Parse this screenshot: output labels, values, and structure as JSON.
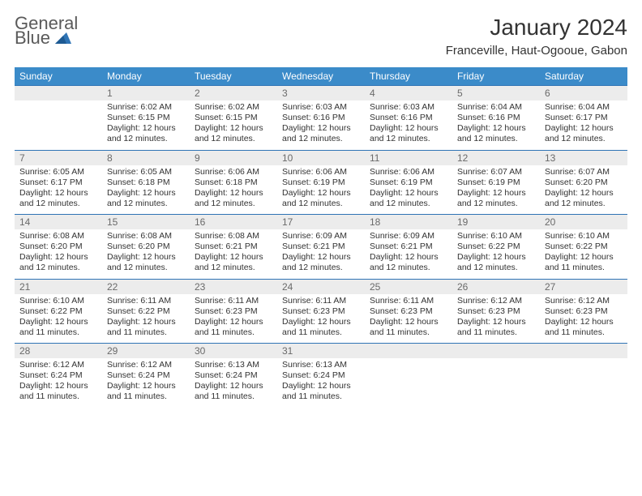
{
  "brand": {
    "word1": "General",
    "word2": "Blue"
  },
  "title": "January 2024",
  "location": "Franceville, Haut-Ogooue, Gabon",
  "colors": {
    "header_bg": "#3b8bc9",
    "header_text": "#ffffff",
    "rule": "#2f74b5",
    "daynum_bg": "#ececec",
    "daynum_text": "#6a6a6a",
    "body_text": "#333333",
    "logo_gray": "#5a5a5a",
    "logo_blue": "#2f74b5"
  },
  "dow": [
    "Sunday",
    "Monday",
    "Tuesday",
    "Wednesday",
    "Thursday",
    "Friday",
    "Saturday"
  ],
  "weeks": [
    [
      {
        "n": "",
        "empty": true
      },
      {
        "n": "1",
        "sr": "Sunrise: 6:02 AM",
        "ss": "Sunset: 6:15 PM",
        "d1": "Daylight: 12 hours",
        "d2": "and 12 minutes."
      },
      {
        "n": "2",
        "sr": "Sunrise: 6:02 AM",
        "ss": "Sunset: 6:15 PM",
        "d1": "Daylight: 12 hours",
        "d2": "and 12 minutes."
      },
      {
        "n": "3",
        "sr": "Sunrise: 6:03 AM",
        "ss": "Sunset: 6:16 PM",
        "d1": "Daylight: 12 hours",
        "d2": "and 12 minutes."
      },
      {
        "n": "4",
        "sr": "Sunrise: 6:03 AM",
        "ss": "Sunset: 6:16 PM",
        "d1": "Daylight: 12 hours",
        "d2": "and 12 minutes."
      },
      {
        "n": "5",
        "sr": "Sunrise: 6:04 AM",
        "ss": "Sunset: 6:16 PM",
        "d1": "Daylight: 12 hours",
        "d2": "and 12 minutes."
      },
      {
        "n": "6",
        "sr": "Sunrise: 6:04 AM",
        "ss": "Sunset: 6:17 PM",
        "d1": "Daylight: 12 hours",
        "d2": "and 12 minutes."
      }
    ],
    [
      {
        "n": "7",
        "sr": "Sunrise: 6:05 AM",
        "ss": "Sunset: 6:17 PM",
        "d1": "Daylight: 12 hours",
        "d2": "and 12 minutes."
      },
      {
        "n": "8",
        "sr": "Sunrise: 6:05 AM",
        "ss": "Sunset: 6:18 PM",
        "d1": "Daylight: 12 hours",
        "d2": "and 12 minutes."
      },
      {
        "n": "9",
        "sr": "Sunrise: 6:06 AM",
        "ss": "Sunset: 6:18 PM",
        "d1": "Daylight: 12 hours",
        "d2": "and 12 minutes."
      },
      {
        "n": "10",
        "sr": "Sunrise: 6:06 AM",
        "ss": "Sunset: 6:19 PM",
        "d1": "Daylight: 12 hours",
        "d2": "and 12 minutes."
      },
      {
        "n": "11",
        "sr": "Sunrise: 6:06 AM",
        "ss": "Sunset: 6:19 PM",
        "d1": "Daylight: 12 hours",
        "d2": "and 12 minutes."
      },
      {
        "n": "12",
        "sr": "Sunrise: 6:07 AM",
        "ss": "Sunset: 6:19 PM",
        "d1": "Daylight: 12 hours",
        "d2": "and 12 minutes."
      },
      {
        "n": "13",
        "sr": "Sunrise: 6:07 AM",
        "ss": "Sunset: 6:20 PM",
        "d1": "Daylight: 12 hours",
        "d2": "and 12 minutes."
      }
    ],
    [
      {
        "n": "14",
        "sr": "Sunrise: 6:08 AM",
        "ss": "Sunset: 6:20 PM",
        "d1": "Daylight: 12 hours",
        "d2": "and 12 minutes."
      },
      {
        "n": "15",
        "sr": "Sunrise: 6:08 AM",
        "ss": "Sunset: 6:20 PM",
        "d1": "Daylight: 12 hours",
        "d2": "and 12 minutes."
      },
      {
        "n": "16",
        "sr": "Sunrise: 6:08 AM",
        "ss": "Sunset: 6:21 PM",
        "d1": "Daylight: 12 hours",
        "d2": "and 12 minutes."
      },
      {
        "n": "17",
        "sr": "Sunrise: 6:09 AM",
        "ss": "Sunset: 6:21 PM",
        "d1": "Daylight: 12 hours",
        "d2": "and 12 minutes."
      },
      {
        "n": "18",
        "sr": "Sunrise: 6:09 AM",
        "ss": "Sunset: 6:21 PM",
        "d1": "Daylight: 12 hours",
        "d2": "and 12 minutes."
      },
      {
        "n": "19",
        "sr": "Sunrise: 6:10 AM",
        "ss": "Sunset: 6:22 PM",
        "d1": "Daylight: 12 hours",
        "d2": "and 12 minutes."
      },
      {
        "n": "20",
        "sr": "Sunrise: 6:10 AM",
        "ss": "Sunset: 6:22 PM",
        "d1": "Daylight: 12 hours",
        "d2": "and 11 minutes."
      }
    ],
    [
      {
        "n": "21",
        "sr": "Sunrise: 6:10 AM",
        "ss": "Sunset: 6:22 PM",
        "d1": "Daylight: 12 hours",
        "d2": "and 11 minutes."
      },
      {
        "n": "22",
        "sr": "Sunrise: 6:11 AM",
        "ss": "Sunset: 6:22 PM",
        "d1": "Daylight: 12 hours",
        "d2": "and 11 minutes."
      },
      {
        "n": "23",
        "sr": "Sunrise: 6:11 AM",
        "ss": "Sunset: 6:23 PM",
        "d1": "Daylight: 12 hours",
        "d2": "and 11 minutes."
      },
      {
        "n": "24",
        "sr": "Sunrise: 6:11 AM",
        "ss": "Sunset: 6:23 PM",
        "d1": "Daylight: 12 hours",
        "d2": "and 11 minutes."
      },
      {
        "n": "25",
        "sr": "Sunrise: 6:11 AM",
        "ss": "Sunset: 6:23 PM",
        "d1": "Daylight: 12 hours",
        "d2": "and 11 minutes."
      },
      {
        "n": "26",
        "sr": "Sunrise: 6:12 AM",
        "ss": "Sunset: 6:23 PM",
        "d1": "Daylight: 12 hours",
        "d2": "and 11 minutes."
      },
      {
        "n": "27",
        "sr": "Sunrise: 6:12 AM",
        "ss": "Sunset: 6:23 PM",
        "d1": "Daylight: 12 hours",
        "d2": "and 11 minutes."
      }
    ],
    [
      {
        "n": "28",
        "sr": "Sunrise: 6:12 AM",
        "ss": "Sunset: 6:24 PM",
        "d1": "Daylight: 12 hours",
        "d2": "and 11 minutes."
      },
      {
        "n": "29",
        "sr": "Sunrise: 6:12 AM",
        "ss": "Sunset: 6:24 PM",
        "d1": "Daylight: 12 hours",
        "d2": "and 11 minutes."
      },
      {
        "n": "30",
        "sr": "Sunrise: 6:13 AM",
        "ss": "Sunset: 6:24 PM",
        "d1": "Daylight: 12 hours",
        "d2": "and 11 minutes."
      },
      {
        "n": "31",
        "sr": "Sunrise: 6:13 AM",
        "ss": "Sunset: 6:24 PM",
        "d1": "Daylight: 12 hours",
        "d2": "and 11 minutes."
      },
      {
        "n": "",
        "empty": true
      },
      {
        "n": "",
        "empty": true
      },
      {
        "n": "",
        "empty": true
      }
    ]
  ]
}
